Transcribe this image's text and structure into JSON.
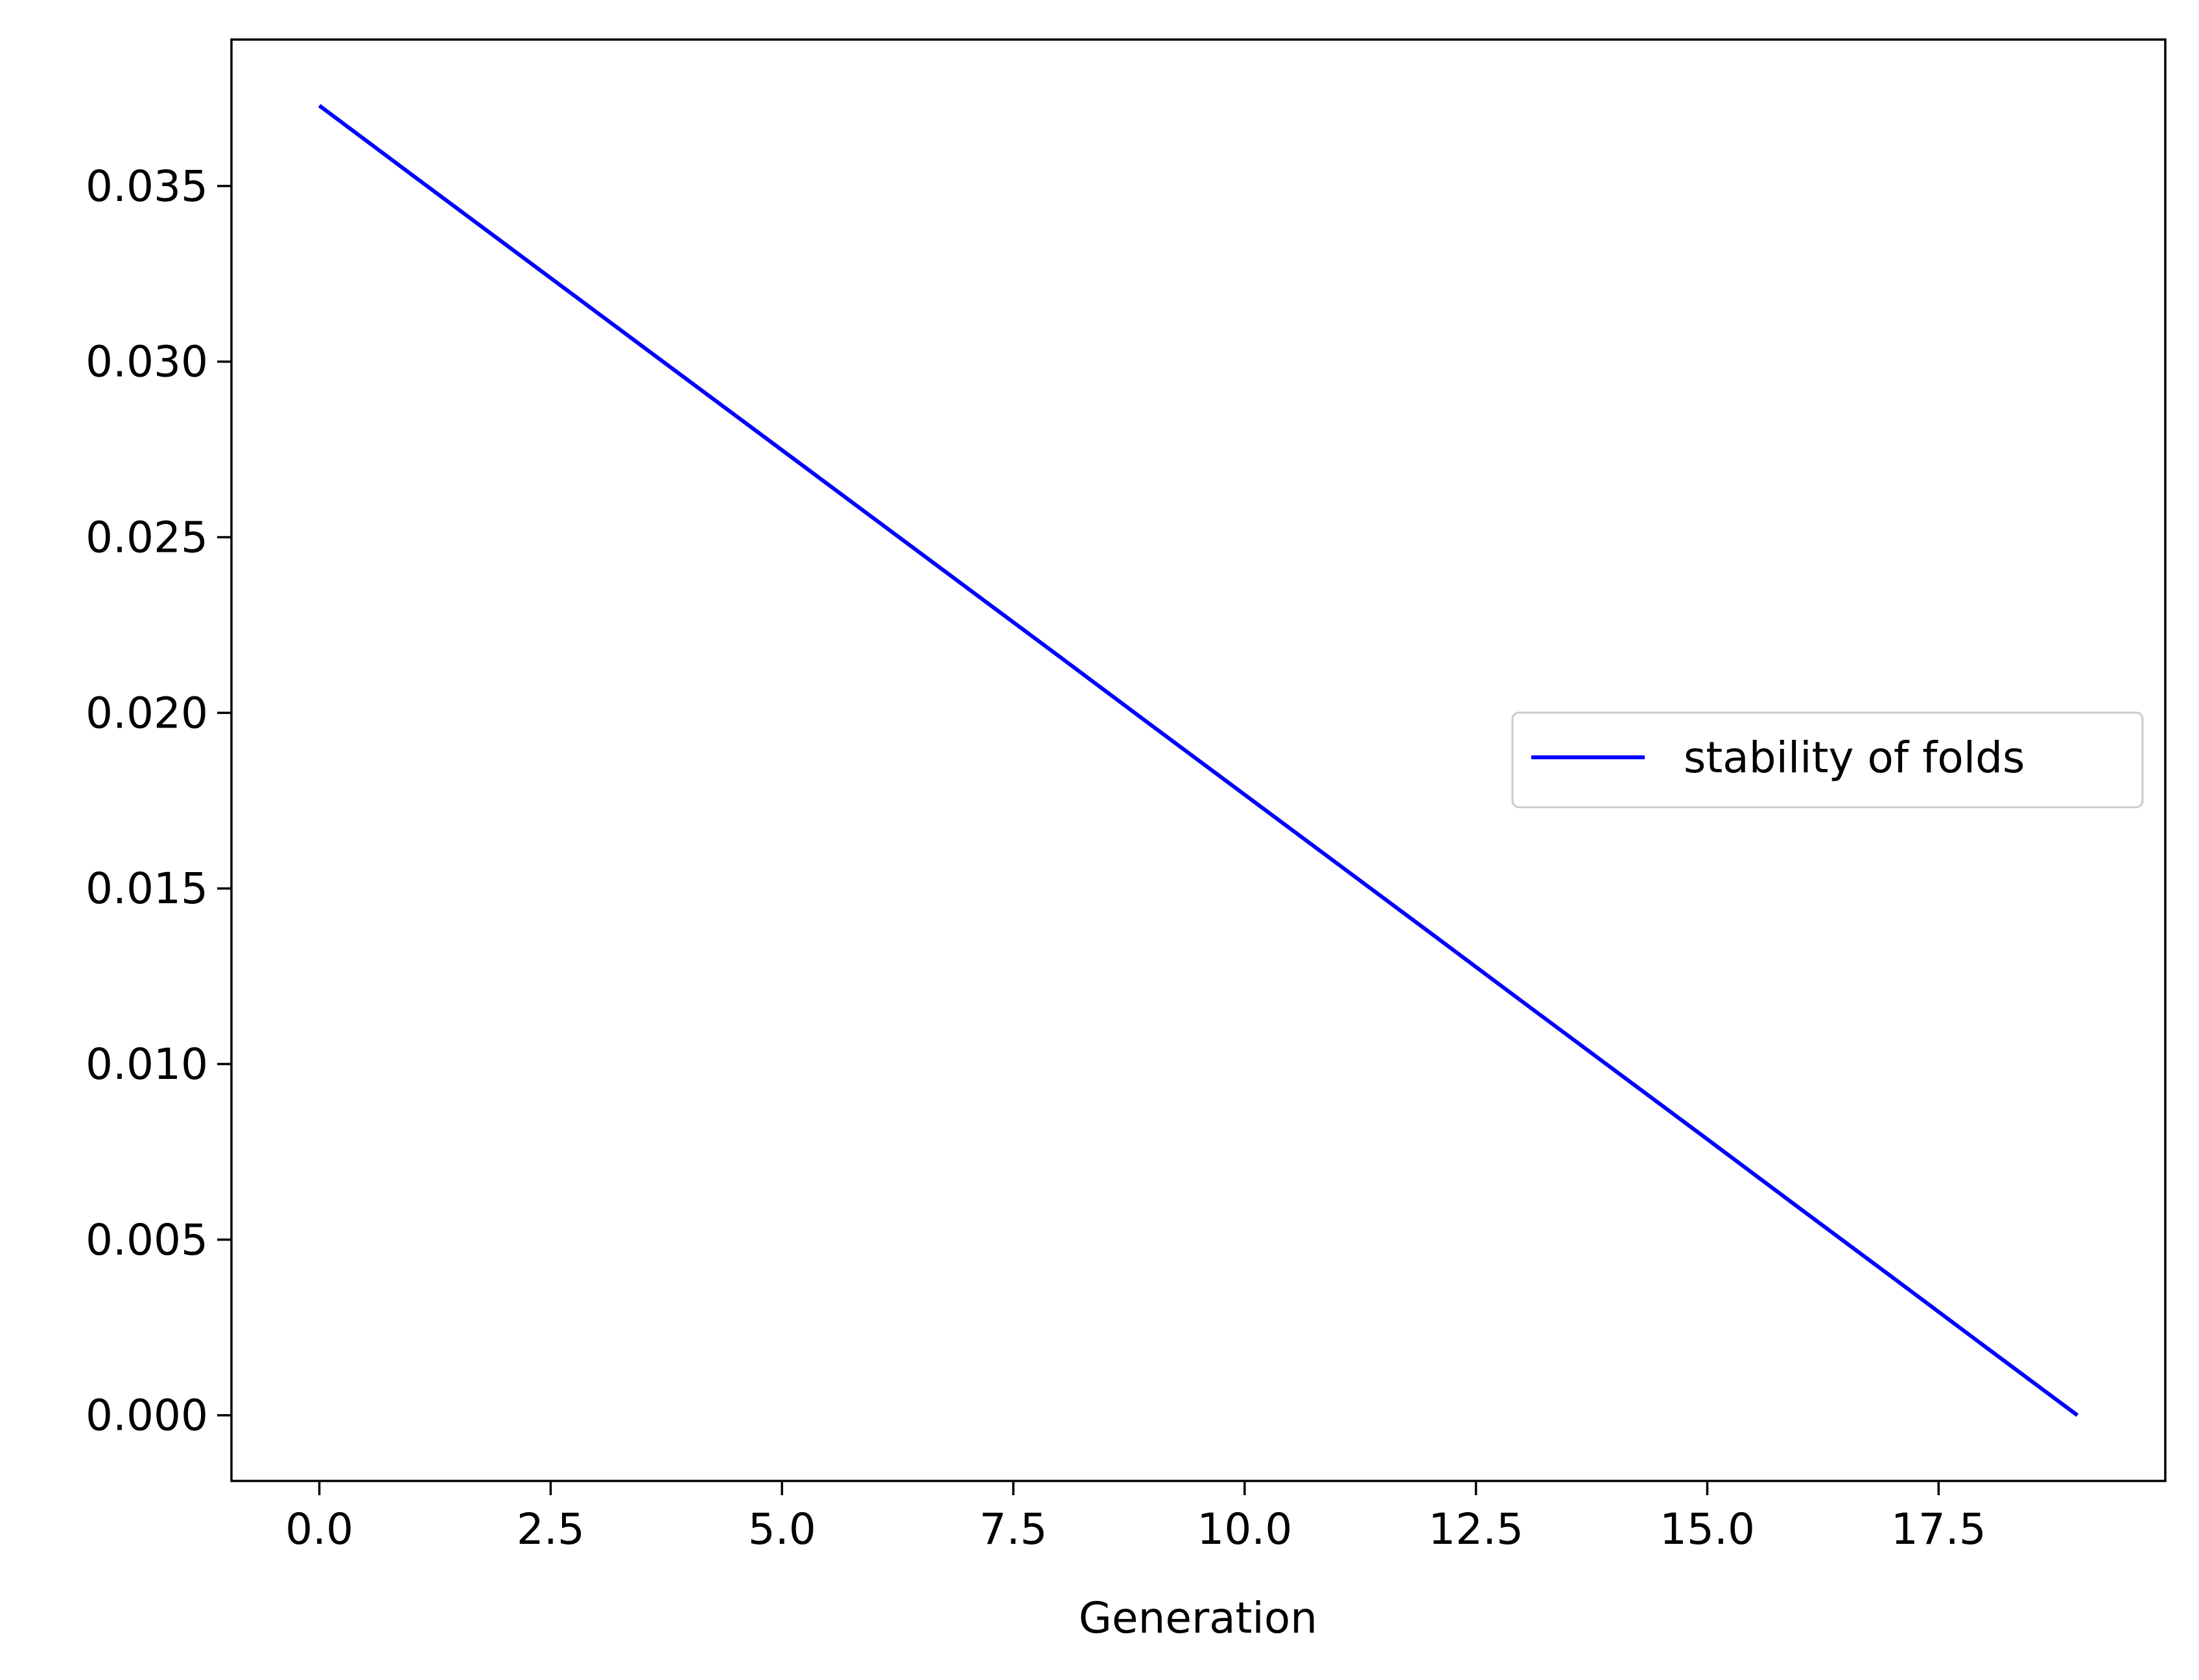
{
  "chart_data": {
    "type": "line",
    "title": "",
    "xlabel": "Generation",
    "ylabel": "",
    "xlim": [
      -0.95,
      19.95
    ],
    "ylim": [
      -0.00187,
      0.03917
    ],
    "xticks": [
      0.0,
      2.5,
      5.0,
      7.5,
      10.0,
      12.5,
      15.0,
      17.5
    ],
    "xtick_labels": [
      "0.0",
      "2.5",
      "5.0",
      "7.5",
      "10.0",
      "12.5",
      "15.0",
      "17.5"
    ],
    "yticks": [
      0.0,
      0.005,
      0.01,
      0.015,
      0.02,
      0.025,
      0.03,
      0.035
    ],
    "ytick_labels": [
      "0.000",
      "0.005",
      "0.010",
      "0.015",
      "0.020",
      "0.025",
      "0.030",
      "0.035"
    ],
    "grid": false,
    "legend_position": "center-right",
    "series": [
      {
        "name": "stability of folds",
        "color": "#0000ff",
        "x": [
          0,
          1,
          2,
          3,
          4,
          5,
          6,
          7,
          8,
          9,
          10,
          11,
          12,
          13,
          14,
          15,
          16,
          17,
          18,
          19
        ],
        "y": [
          0.03729,
          0.03532,
          0.03336,
          0.0314,
          0.02944,
          0.02748,
          0.02552,
          0.02356,
          0.0216,
          0.01963,
          0.01767,
          0.01571,
          0.01375,
          0.01178,
          0.00982,
          0.00786,
          0.00589,
          0.00393,
          0.00196,
          0.0
        ]
      }
    ]
  }
}
